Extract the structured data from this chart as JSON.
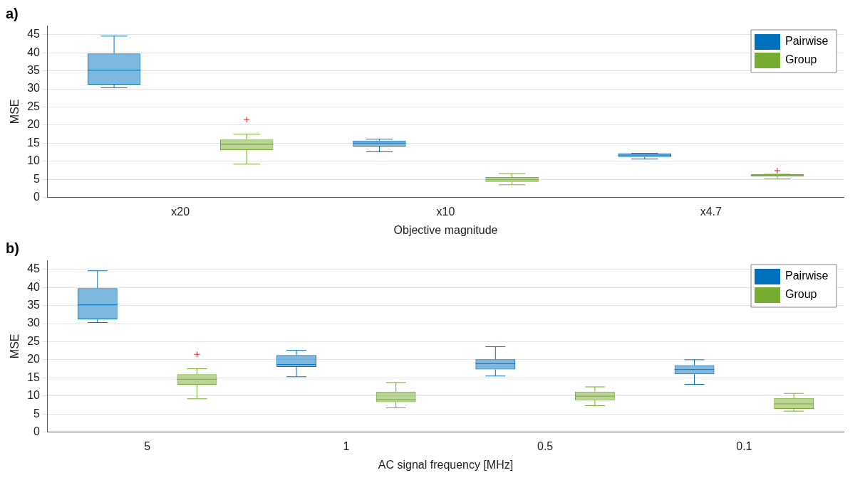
{
  "chart_data": [
    {
      "type": "box",
      "title": "a)",
      "xlabel": "Objective magnitude",
      "ylabel": "MSE",
      "categories": [
        "x20",
        "x10",
        "x4.7"
      ],
      "ylim": [
        0,
        47.5
      ],
      "yticks": [
        0,
        5,
        10,
        15,
        20,
        25,
        30,
        35,
        40,
        45
      ],
      "grid": "y",
      "legend": "top right",
      "series": [
        {
          "name": "Pairwise",
          "color": "#0072bd",
          "boxes": [
            {
              "low": 30.3,
              "q1": 31.2,
              "median": 35.2,
              "q3": 39.8,
              "high": 44.6
            },
            {
              "low": 12.6,
              "q1": 14.1,
              "median": 15,
              "q3": 15.7,
              "high": 16.1
            },
            {
              "low": 10.6,
              "q1": 11.2,
              "median": 11.7,
              "q3": 12.2,
              "high": 12.2
            }
          ]
        },
        {
          "name": "Group",
          "color": "#77ac30",
          "boxes": [
            {
              "low": 9.2,
              "q1": 13.1,
              "median": 14.6,
              "q3": 16,
              "high": 17.5,
              "outliers": [
                21.5
              ]
            },
            {
              "low": 3.5,
              "q1": 4.3,
              "median": 4.9,
              "q3": 5.6,
              "high": 6.6
            },
            {
              "low": 5.1,
              "q1": 5.8,
              "median": 6.1,
              "q3": 6.4,
              "high": 6.4,
              "outliers": [
                7.4
              ]
            }
          ]
        }
      ]
    },
    {
      "type": "box",
      "title": "b)",
      "xlabel": "AC signal frequency [MHz]",
      "ylabel": "MSE",
      "categories": [
        "5",
        "1",
        "0.5",
        "0.1"
      ],
      "ylim": [
        0,
        47.5
      ],
      "yticks": [
        0,
        5,
        10,
        15,
        20,
        25,
        30,
        35,
        40,
        45
      ],
      "grid": "y",
      "legend": "top right",
      "series": [
        {
          "name": "Pairwise",
          "color": "#0072bd",
          "boxes": [
            {
              "low": 30.3,
              "q1": 31.2,
              "median": 35.2,
              "q3": 39.8,
              "high": 44.6
            },
            {
              "low": 15.3,
              "q1": 18,
              "median": 18.7,
              "q3": 21.3,
              "high": 22.6
            },
            {
              "low": 15.5,
              "q1": 17.3,
              "median": 18.9,
              "q3": 20.1,
              "high": 23.6
            },
            {
              "low": 13.2,
              "q1": 16,
              "median": 17.3,
              "q3": 18.5,
              "high": 20
            }
          ]
        },
        {
          "name": "Group",
          "color": "#77ac30",
          "boxes": [
            {
              "low": 9.2,
              "q1": 13.1,
              "median": 14.6,
              "q3": 16,
              "high": 17.5,
              "outliers": [
                21.5
              ]
            },
            {
              "low": 6.7,
              "q1": 8.3,
              "median": 9,
              "q3": 11.2,
              "high": 13.7
            },
            {
              "low": 7.3,
              "q1": 8.8,
              "median": 9.9,
              "q3": 11.2,
              "high": 12.5
            },
            {
              "low": 5.8,
              "q1": 6.4,
              "median": 7.8,
              "q3": 9.4,
              "high": 10.7
            }
          ]
        }
      ]
    }
  ]
}
